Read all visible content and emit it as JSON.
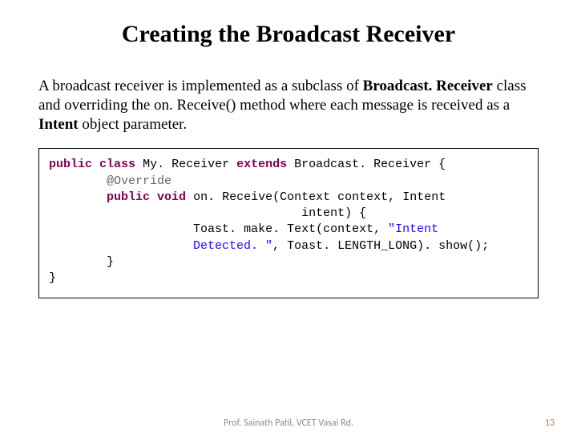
{
  "title": "Creating the Broadcast Receiver",
  "body": {
    "p1_a": "A broadcast receiver is implemented as a subclass of ",
    "p1_b": "Broadcast. Receiver",
    "p1_c": " class and overriding the on. Receive() method where each message is received as a ",
    "p1_d": "Intent",
    "p1_e": " object parameter."
  },
  "code": {
    "kw_public": "public",
    "kw_class": "class",
    "kw_extends": "extends",
    "kw_void": "void",
    "ann_override": "@Override",
    "cls_my": "My. Receiver",
    "cls_br": "Broadcast. Receiver",
    "m_onrec": "on. Receive",
    "t_context": "Context",
    "v_context": "context",
    "t_intent": "Intent",
    "v_intent": "intent",
    "toast": "Toast",
    "maketext": "make. Text",
    "str_msg": "\"Intent\n                    Detected. \"",
    "len": "LENGTH_LONG",
    "show": "show"
  },
  "footer": {
    "center": "Prof. Sainath Patil, VCET Vasai Rd.",
    "page": "13"
  },
  "colors": {
    "keyword": "#7f0055",
    "annotation": "#646464",
    "string": "#2a00ff",
    "footer_grey": "#8a8a8a",
    "footer_page": "#b57f5a",
    "border": "#000000",
    "background": "#ffffff"
  }
}
